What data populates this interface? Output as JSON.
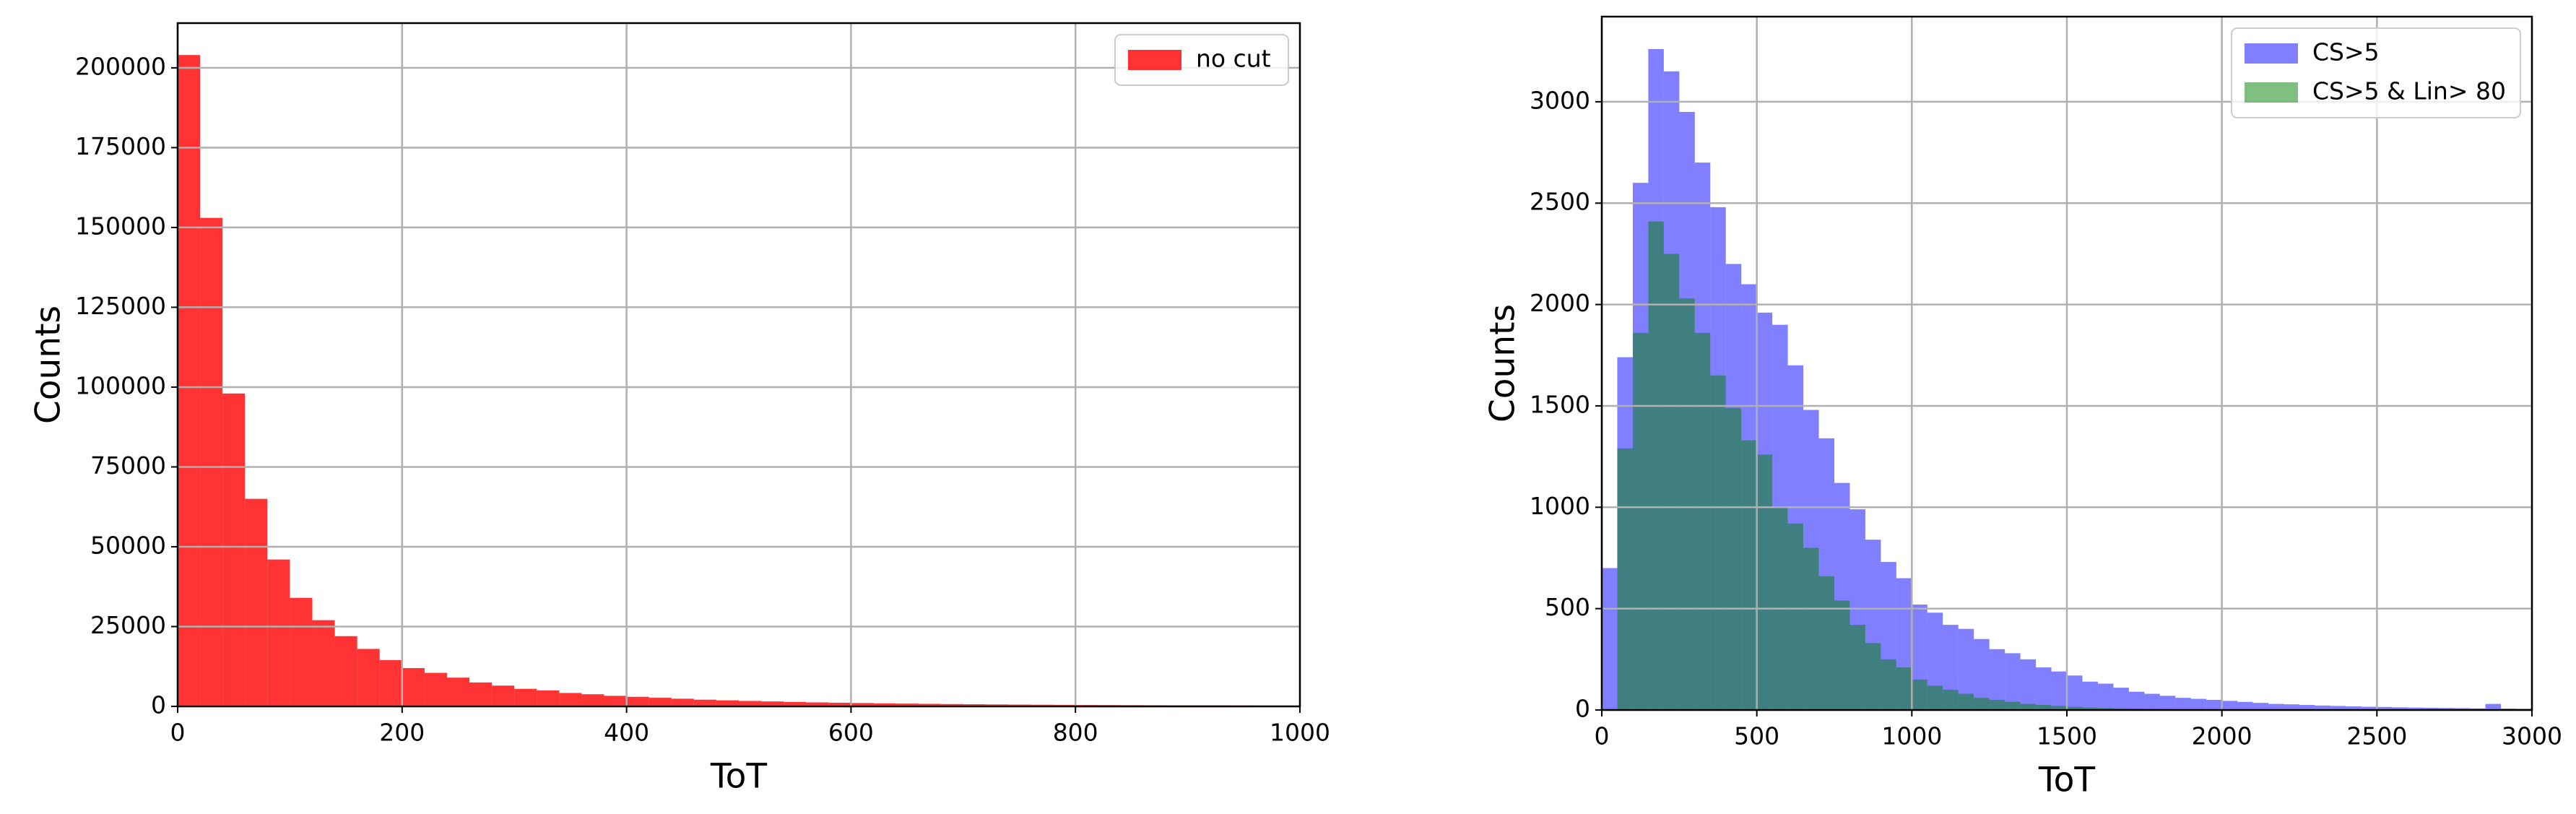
{
  "chart_data": [
    {
      "type": "histogram",
      "xlabel": "ToT",
      "ylabel": "Counts",
      "bins": [
        0,
        20,
        40,
        60,
        80,
        100,
        120,
        140,
        160,
        180,
        200,
        220,
        240,
        260,
        280,
        300,
        320,
        340,
        360,
        380,
        400,
        420,
        440,
        460,
        480,
        500,
        520,
        540,
        560,
        580,
        600,
        620,
        640,
        660,
        680,
        700,
        720,
        740,
        760,
        780,
        800,
        820,
        840,
        860,
        880,
        900,
        920,
        940,
        960,
        980,
        1000
      ],
      "series": [
        {
          "name": "no cut",
          "color": "#ff0000",
          "opacity": 0.8,
          "values": [
            204000,
            153000,
            98000,
            65000,
            46000,
            34000,
            27000,
            22000,
            18000,
            14500,
            12000,
            10500,
            9000,
            7500,
            6500,
            5500,
            5000,
            4200,
            3800,
            3300,
            3000,
            2700,
            2400,
            2100,
            1900,
            1700,
            1550,
            1400,
            1250,
            1150,
            1050,
            950,
            870,
            800,
            730,
            670,
            610,
            560,
            520,
            480,
            440,
            410,
            380,
            350,
            320,
            300,
            280,
            260,
            240,
            220
          ]
        }
      ],
      "xlim": [
        0,
        1000
      ],
      "ylim": [
        0,
        214000
      ],
      "xticks": [
        0,
        200,
        400,
        600,
        800,
        1000
      ],
      "yticks": [
        0,
        25000,
        50000,
        75000,
        100000,
        125000,
        150000,
        175000,
        200000
      ],
      "grid": true,
      "legend": "upper right"
    },
    {
      "type": "histogram",
      "xlabel": "ToT",
      "ylabel": "Counts",
      "bins": [
        0,
        50,
        100,
        150,
        200,
        250,
        300,
        350,
        400,
        450,
        500,
        550,
        600,
        650,
        700,
        750,
        800,
        850,
        900,
        950,
        1000,
        1050,
        1100,
        1150,
        1200,
        1250,
        1300,
        1350,
        1400,
        1450,
        1500,
        1550,
        1600,
        1650,
        1700,
        1750,
        1800,
        1850,
        1900,
        1950,
        2000,
        2050,
        2100,
        2150,
        2200,
        2250,
        2300,
        2350,
        2400,
        2450,
        2500,
        2550,
        2600,
        2650,
        2700,
        2750,
        2800,
        2850,
        2900,
        2950,
        3000
      ],
      "series": [
        {
          "name": "CS>5",
          "color": "#0000ff",
          "opacity": 0.5,
          "values": [
            700,
            1740,
            2600,
            3260,
            3150,
            2950,
            2700,
            2480,
            2200,
            2100,
            1960,
            1900,
            1700,
            1480,
            1340,
            1120,
            990,
            840,
            730,
            650,
            520,
            480,
            420,
            400,
            350,
            300,
            280,
            250,
            210,
            190,
            170,
            140,
            130,
            110,
            90,
            80,
            70,
            60,
            55,
            50,
            45,
            40,
            35,
            30,
            28,
            25,
            22,
            20,
            18,
            16,
            15,
            13,
            12,
            11,
            10,
            9,
            8,
            30,
            7,
            6
          ]
        },
        {
          "name": "CS>5 & Lin> 80",
          "color": "#008000",
          "opacity": 0.5,
          "values": [
            0,
            1290,
            1860,
            2410,
            2250,
            2030,
            1860,
            1650,
            1490,
            1330,
            1260,
            1000,
            920,
            800,
            660,
            540,
            420,
            330,
            250,
            210,
            150,
            120,
            100,
            80,
            60,
            50,
            40,
            30,
            25,
            20,
            15,
            12,
            10,
            8,
            7,
            6,
            5,
            4,
            4,
            3,
            3,
            2,
            2,
            2,
            2,
            1,
            1,
            1,
            1,
            1,
            1,
            1,
            1,
            1,
            1,
            1,
            1,
            1,
            1,
            1
          ]
        }
      ],
      "xlim": [
        0,
        3000
      ],
      "ylim": [
        0,
        3420
      ],
      "xticks": [
        0,
        500,
        1000,
        1500,
        2000,
        2500,
        3000
      ],
      "yticks": [
        0,
        500,
        1000,
        1500,
        2000,
        2500,
        3000
      ],
      "grid": true,
      "legend": "upper right"
    }
  ]
}
